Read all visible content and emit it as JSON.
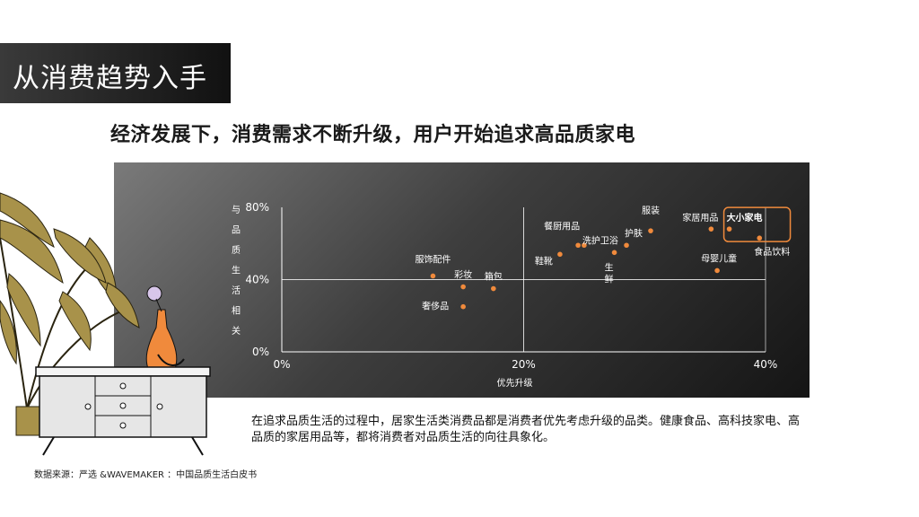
{
  "header": {
    "title": "从消费趋势入手"
  },
  "subtitle": "经济发展下，消费需求不断升级，用户开始追求高品质家电",
  "body_text": "在追求品质生活的过程中，居家生活类消费品都是消费者优先考虑升级的品类。健康食品、高科技家电、高品质的家居用品等，都将消费者对品质生活的向往具象化。",
  "source": "数据来源：严选 &WAVEMAKER ：中国品质生活白皮书",
  "colors": {
    "point": "#f08a3c",
    "highlight_box": "#f08a3c",
    "axis": "#ffffff"
  },
  "chart_data": {
    "type": "scatter",
    "xlabel": "优先升级",
    "ylabel": "与品质生活相关",
    "xlim": [
      0,
      40
    ],
    "ylim": [
      0,
      80
    ],
    "x_ticks": [
      "0%",
      "20%",
      "40%"
    ],
    "y_ticks": [
      "0%",
      "40%",
      "80%"
    ],
    "grid": "crosshair at x=20%, y=40%",
    "highlight": "大小家电",
    "points": [
      {
        "label": "服饰配件",
        "x": 12.5,
        "y": 42
      },
      {
        "label": "彩妆",
        "x": 15,
        "y": 36
      },
      {
        "label": "箱包",
        "x": 17.5,
        "y": 35
      },
      {
        "label": "奢侈品",
        "x": 15,
        "y": 25
      },
      {
        "label": "餐厨用品",
        "x": 24.5,
        "y": 59
      },
      {
        "label": "洗护卫浴",
        "x": 25,
        "y": 59
      },
      {
        "label": "鞋靴",
        "x": 23,
        "y": 54
      },
      {
        "label": "生鲜",
        "x": 27.5,
        "y": 55
      },
      {
        "label": "护肤",
        "x": 28.5,
        "y": 59
      },
      {
        "label": "服装",
        "x": 30.5,
        "y": 67
      },
      {
        "label": "家居用品",
        "x": 35.5,
        "y": 68
      },
      {
        "label": "大小家电",
        "x": 37,
        "y": 68
      },
      {
        "label": "母婴儿童",
        "x": 36,
        "y": 45
      },
      {
        "label": "食品饮料",
        "x": 39.5,
        "y": 63
      }
    ]
  }
}
